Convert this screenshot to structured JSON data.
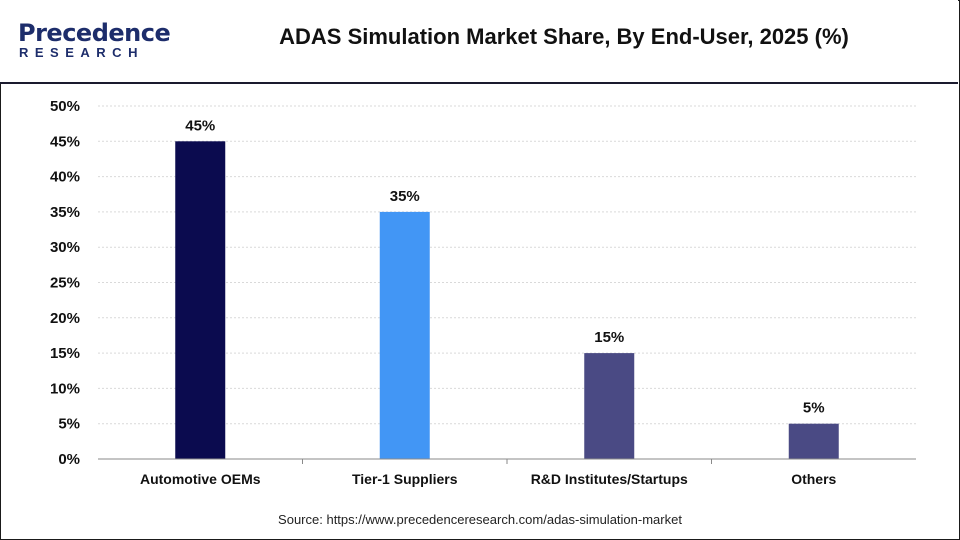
{
  "brand": {
    "logo_main": "Precedence",
    "logo_sub": "RESEARCH"
  },
  "chart_data": {
    "type": "bar",
    "title": "ADAS Simulation Market Share, By End-User, 2025 (%)",
    "categories": [
      "Automotive OEMs",
      "Tier-1 Suppliers",
      "R&D Institutes/Startups",
      "Others"
    ],
    "values": [
      45,
      35,
      15,
      5
    ],
    "data_labels": [
      "45%",
      "35%",
      "15%",
      "5%"
    ],
    "bar_colors": [
      "#0b0b4f",
      "#4296f5",
      "#4a4a84",
      "#4a4a84"
    ],
    "ylim": [
      0,
      50
    ],
    "yticks": [
      "0%",
      "5%",
      "10%",
      "15%",
      "20%",
      "25%",
      "30%",
      "35%",
      "40%",
      "45%",
      "50%"
    ],
    "xlabel": "",
    "ylabel": "",
    "grid": true,
    "legend": "none"
  },
  "source": "Source: https://www.precedenceresearch.com/adas-simulation-market"
}
